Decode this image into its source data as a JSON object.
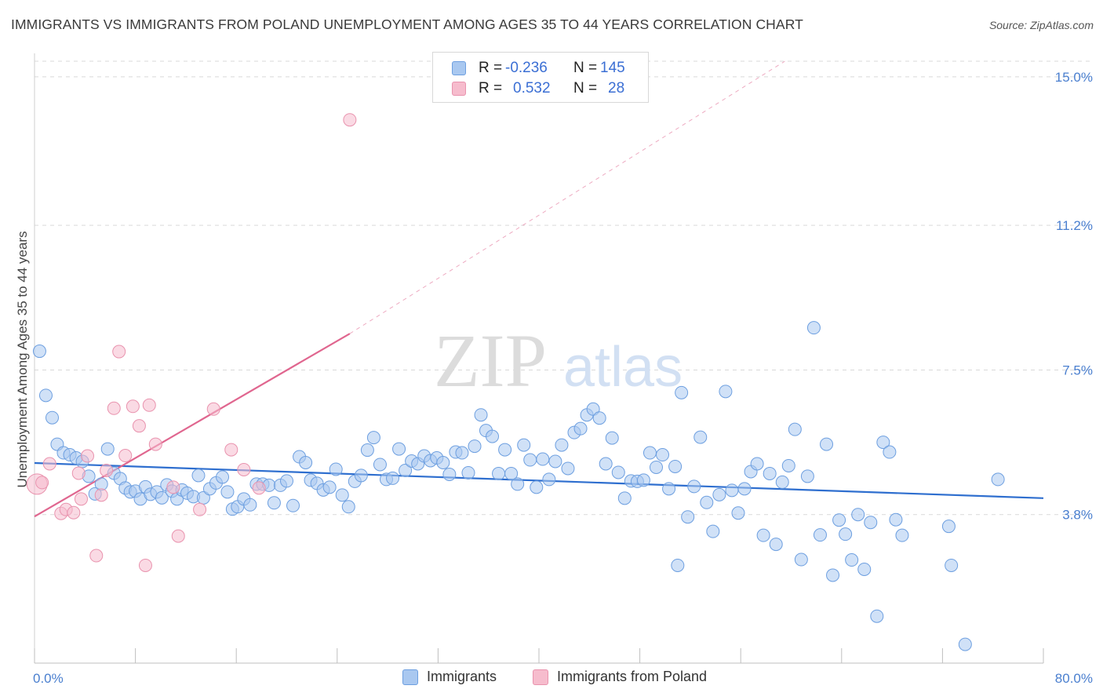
{
  "title": "IMMIGRANTS VS IMMIGRANTS FROM POLAND UNEMPLOYMENT AMONG AGES 35 TO 44 YEARS CORRELATION CHART",
  "source": "Source: ZipAtlas.com",
  "watermark": {
    "zip": "ZIP",
    "atlas": "atlas"
  },
  "colors": {
    "blue_fill": "#a9c8f0",
    "blue_stroke": "#6d9fe0",
    "blue_line": "#2f6fcf",
    "pink_fill": "#f6bccd",
    "pink_stroke": "#e993ae",
    "pink_line": "#e0668f",
    "grid": "#d9d9d9",
    "tick_text": "#4a7fcf"
  },
  "stats": [
    {
      "r_label": "R =",
      "r_value": "-0.236",
      "n_label": "N =",
      "n_value": "145"
    },
    {
      "r_label": "R =",
      "r_value": "0.532",
      "n_label": "N =",
      "n_value": "28"
    }
  ],
  "legend": [
    "Immigrants",
    "Immigrants from Poland"
  ],
  "chart_data": {
    "type": "scatter",
    "title": "IMMIGRANTS VS IMMIGRANTS FROM POLAND UNEMPLOYMENT AMONG AGES 35 TO 44 YEARS CORRELATION CHART",
    "xlabel": "",
    "ylabel": "Unemployment Among Ages 35 to 44 years",
    "xlim": [
      0,
      80
    ],
    "ylim": [
      0,
      15.4
    ],
    "x_tick_labels": [
      "0.0%",
      "80.0%"
    ],
    "y_ticks": [
      3.8,
      7.5,
      11.2,
      15.0
    ],
    "y_tick_labels": [
      "3.8%",
      "7.5%",
      "11.2%",
      "15.0%"
    ],
    "grid": "horizontal dashed",
    "legend_position": "bottom-center",
    "series": [
      {
        "name": "Immigrants",
        "color": "#a9c8f0",
        "trend": {
          "x": [
            0,
            80
          ],
          "y": [
            5.12,
            4.22
          ]
        },
        "points": [
          [
            0.4,
            7.98
          ],
          [
            0.9,
            6.85
          ],
          [
            1.4,
            6.28
          ],
          [
            1.8,
            5.6
          ],
          [
            2.3,
            5.38
          ],
          [
            2.8,
            5.33
          ],
          [
            3.3,
            5.25
          ],
          [
            3.8,
            5.16
          ],
          [
            4.3,
            4.78
          ],
          [
            4.8,
            4.33
          ],
          [
            5.3,
            4.58
          ],
          [
            5.8,
            5.48
          ],
          [
            6.3,
            4.86
          ],
          [
            6.8,
            4.72
          ],
          [
            7.2,
            4.48
          ],
          [
            7.6,
            4.38
          ],
          [
            8.0,
            4.4
          ],
          [
            8.4,
            4.2
          ],
          [
            8.8,
            4.51
          ],
          [
            9.2,
            4.32
          ],
          [
            9.7,
            4.38
          ],
          [
            10.1,
            4.23
          ],
          [
            10.5,
            4.56
          ],
          [
            10.9,
            4.4
          ],
          [
            11.3,
            4.2
          ],
          [
            11.7,
            4.43
          ],
          [
            12.1,
            4.35
          ],
          [
            12.6,
            4.26
          ],
          [
            13.0,
            4.8
          ],
          [
            13.4,
            4.23
          ],
          [
            13.9,
            4.46
          ],
          [
            14.4,
            4.61
          ],
          [
            14.9,
            4.76
          ],
          [
            15.3,
            4.38
          ],
          [
            15.7,
            3.94
          ],
          [
            16.1,
            4.0
          ],
          [
            16.6,
            4.2
          ],
          [
            17.1,
            4.05
          ],
          [
            17.6,
            4.58
          ],
          [
            18.1,
            4.58
          ],
          [
            18.6,
            4.55
          ],
          [
            19.0,
            4.1
          ],
          [
            19.5,
            4.55
          ],
          [
            20.0,
            4.66
          ],
          [
            20.5,
            4.03
          ],
          [
            21.0,
            5.28
          ],
          [
            21.5,
            5.13
          ],
          [
            21.9,
            4.68
          ],
          [
            22.4,
            4.6
          ],
          [
            22.9,
            4.43
          ],
          [
            23.4,
            4.5
          ],
          [
            23.9,
            4.96
          ],
          [
            24.4,
            4.3
          ],
          [
            24.9,
            4.0
          ],
          [
            25.4,
            4.65
          ],
          [
            25.9,
            4.8
          ],
          [
            26.4,
            5.45
          ],
          [
            26.9,
            5.77
          ],
          [
            27.4,
            5.08
          ],
          [
            27.9,
            4.7
          ],
          [
            28.4,
            4.73
          ],
          [
            28.9,
            5.48
          ],
          [
            29.4,
            4.93
          ],
          [
            29.9,
            5.17
          ],
          [
            30.4,
            5.1
          ],
          [
            30.9,
            5.3
          ],
          [
            31.4,
            5.18
          ],
          [
            31.9,
            5.25
          ],
          [
            32.4,
            5.13
          ],
          [
            32.9,
            4.83
          ],
          [
            33.4,
            5.4
          ],
          [
            33.9,
            5.38
          ],
          [
            34.4,
            4.87
          ],
          [
            34.9,
            5.55
          ],
          [
            35.4,
            6.35
          ],
          [
            35.8,
            5.95
          ],
          [
            36.3,
            5.8
          ],
          [
            36.8,
            4.85
          ],
          [
            37.3,
            5.46
          ],
          [
            37.8,
            4.85
          ],
          [
            38.3,
            4.58
          ],
          [
            38.8,
            5.58
          ],
          [
            39.3,
            5.2
          ],
          [
            39.8,
            4.5
          ],
          [
            40.3,
            5.22
          ],
          [
            40.8,
            4.7
          ],
          [
            41.3,
            5.16
          ],
          [
            41.8,
            5.58
          ],
          [
            42.3,
            4.98
          ],
          [
            42.8,
            5.9
          ],
          [
            43.3,
            6.0
          ],
          [
            43.8,
            6.35
          ],
          [
            44.3,
            6.5
          ],
          [
            44.8,
            6.27
          ],
          [
            45.3,
            5.1
          ],
          [
            45.8,
            5.76
          ],
          [
            46.3,
            4.88
          ],
          [
            46.8,
            4.22
          ],
          [
            47.3,
            4.66
          ],
          [
            47.8,
            4.65
          ],
          [
            48.3,
            4.68
          ],
          [
            48.8,
            5.38
          ],
          [
            49.3,
            5.01
          ],
          [
            49.8,
            5.33
          ],
          [
            50.3,
            4.46
          ],
          [
            50.8,
            5.03
          ],
          [
            51.3,
            6.92
          ],
          [
            51.8,
            3.74
          ],
          [
            52.3,
            4.52
          ],
          [
            52.8,
            5.78
          ],
          [
            53.3,
            4.11
          ],
          [
            53.8,
            3.37
          ],
          [
            54.3,
            4.31
          ],
          [
            54.8,
            6.95
          ],
          [
            55.3,
            4.42
          ],
          [
            55.8,
            3.84
          ],
          [
            56.3,
            4.46
          ],
          [
            56.8,
            4.9
          ],
          [
            57.3,
            5.1
          ],
          [
            57.8,
            3.27
          ],
          [
            58.3,
            4.85
          ],
          [
            58.8,
            3.04
          ],
          [
            59.3,
            4.63
          ],
          [
            59.8,
            5.05
          ],
          [
            60.3,
            5.98
          ],
          [
            60.8,
            2.65
          ],
          [
            61.3,
            4.78
          ],
          [
            61.8,
            8.58
          ],
          [
            62.3,
            3.28
          ],
          [
            62.8,
            5.6
          ],
          [
            63.3,
            2.25
          ],
          [
            63.8,
            3.66
          ],
          [
            64.3,
            3.3
          ],
          [
            64.8,
            2.64
          ],
          [
            65.3,
            3.8
          ],
          [
            65.8,
            2.4
          ],
          [
            66.3,
            3.6
          ],
          [
            66.8,
            1.2
          ],
          [
            67.3,
            5.65
          ],
          [
            67.8,
            5.4
          ],
          [
            68.3,
            3.67
          ],
          [
            68.8,
            3.27
          ],
          [
            76.4,
            4.7
          ],
          [
            51.0,
            2.5
          ],
          [
            72.5,
            3.5
          ],
          [
            73.8,
            0.48
          ],
          [
            72.7,
            2.5
          ]
        ]
      },
      {
        "name": "Immigrants from Poland",
        "color": "#f6bccd",
        "trend": {
          "x": [
            0,
            25
          ],
          "y": [
            3.75,
            8.43
          ]
        },
        "trend_dashed": {
          "x": [
            25,
            59.5
          ],
          "y": [
            8.43,
            15.4
          ]
        },
        "points": [
          [
            0.2,
            4.58
          ],
          [
            0.6,
            4.62
          ],
          [
            1.2,
            5.1
          ],
          [
            2.1,
            3.83
          ],
          [
            2.5,
            3.93
          ],
          [
            3.1,
            3.85
          ],
          [
            3.5,
            4.86
          ],
          [
            3.7,
            4.2
          ],
          [
            4.2,
            5.3
          ],
          [
            4.9,
            2.75
          ],
          [
            5.3,
            4.3
          ],
          [
            5.7,
            4.93
          ],
          [
            6.3,
            6.52
          ],
          [
            6.7,
            7.97
          ],
          [
            7.2,
            5.31
          ],
          [
            7.8,
            6.57
          ],
          [
            8.8,
            2.5
          ],
          [
            8.3,
            6.07
          ],
          [
            9.1,
            6.6
          ],
          [
            9.6,
            5.6
          ],
          [
            11.0,
            4.5
          ],
          [
            11.4,
            3.25
          ],
          [
            13.1,
            3.93
          ],
          [
            14.2,
            6.5
          ],
          [
            15.6,
            5.46
          ],
          [
            16.6,
            4.95
          ],
          [
            17.8,
            4.48
          ],
          [
            25.0,
            13.9
          ]
        ]
      }
    ]
  }
}
